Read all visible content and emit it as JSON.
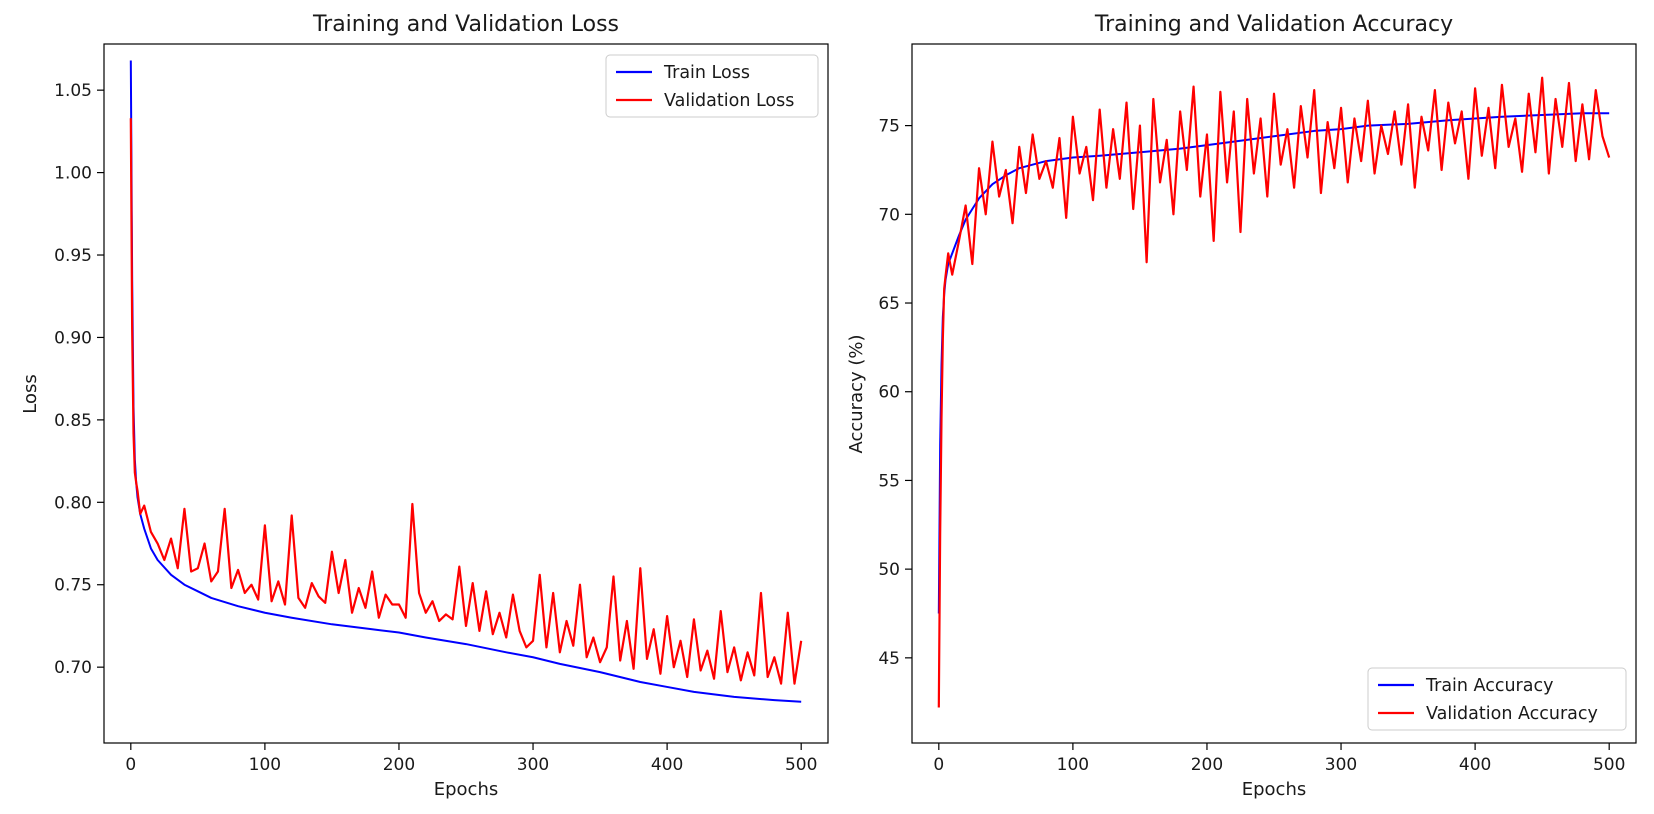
{
  "chart_data": [
    {
      "type": "line",
      "title": "Training and Validation Loss",
      "xlabel": "Epochs",
      "ylabel": "Loss",
      "xlim": [
        -20,
        520
      ],
      "ylim": [
        0.654,
        1.078
      ],
      "xticks": [
        0,
        100,
        200,
        300,
        400,
        500
      ],
      "yticks": [
        0.7,
        0.75,
        0.8,
        0.85,
        0.9,
        0.95,
        1.0,
        1.05
      ],
      "xtick_labels": [
        "0",
        "100",
        "200",
        "300",
        "400",
        "500"
      ],
      "ytick_labels": [
        "0.70",
        "0.75",
        "0.80",
        "0.85",
        "0.90",
        "0.95",
        "1.00",
        "1.05"
      ],
      "grid": false,
      "legend": "upper-right",
      "series": [
        {
          "name": "Train Loss",
          "color": "#0000ff",
          "x": [
            0,
            1,
            2,
            3,
            4,
            5,
            7,
            10,
            15,
            20,
            30,
            40,
            50,
            60,
            80,
            100,
            120,
            150,
            180,
            200,
            220,
            250,
            280,
            300,
            320,
            350,
            380,
            400,
            420,
            450,
            480,
            500
          ],
          "y": [
            1.068,
            0.935,
            0.858,
            0.826,
            0.812,
            0.803,
            0.793,
            0.784,
            0.772,
            0.765,
            0.756,
            0.75,
            0.746,
            0.742,
            0.737,
            0.733,
            0.73,
            0.726,
            0.723,
            0.721,
            0.718,
            0.714,
            0.709,
            0.706,
            0.702,
            0.697,
            0.691,
            0.688,
            0.685,
            0.682,
            0.68,
            0.679
          ]
        },
        {
          "name": "Validation Loss",
          "color": "#ff0000",
          "x": [
            0,
            1,
            2,
            3,
            4,
            5,
            7,
            10,
            15,
            20,
            25,
            30,
            35,
            40,
            45,
            50,
            55,
            60,
            65,
            70,
            75,
            80,
            85,
            90,
            95,
            100,
            105,
            110,
            115,
            120,
            125,
            130,
            135,
            140,
            145,
            150,
            155,
            160,
            165,
            170,
            175,
            180,
            185,
            190,
            195,
            200,
            205,
            210,
            215,
            220,
            225,
            230,
            235,
            240,
            245,
            250,
            255,
            260,
            265,
            270,
            275,
            280,
            285,
            290,
            295,
            300,
            305,
            310,
            315,
            320,
            325,
            330,
            335,
            340,
            345,
            350,
            355,
            360,
            365,
            370,
            375,
            380,
            385,
            390,
            395,
            400,
            405,
            410,
            415,
            420,
            425,
            430,
            435,
            440,
            445,
            450,
            455,
            460,
            465,
            470,
            475,
            480,
            485,
            490,
            495,
            500
          ],
          "y": [
            1.033,
            0.905,
            0.842,
            0.818,
            0.812,
            0.807,
            0.793,
            0.798,
            0.782,
            0.775,
            0.765,
            0.778,
            0.76,
            0.796,
            0.758,
            0.76,
            0.775,
            0.752,
            0.758,
            0.796,
            0.748,
            0.759,
            0.745,
            0.75,
            0.741,
            0.786,
            0.74,
            0.752,
            0.738,
            0.792,
            0.742,
            0.736,
            0.751,
            0.743,
            0.739,
            0.77,
            0.745,
            0.765,
            0.733,
            0.748,
            0.736,
            0.758,
            0.73,
            0.744,
            0.738,
            0.738,
            0.73,
            0.799,
            0.745,
            0.733,
            0.74,
            0.728,
            0.732,
            0.729,
            0.761,
            0.725,
            0.751,
            0.722,
            0.746,
            0.72,
            0.733,
            0.718,
            0.744,
            0.722,
            0.712,
            0.716,
            0.756,
            0.712,
            0.745,
            0.709,
            0.728,
            0.713,
            0.75,
            0.706,
            0.718,
            0.703,
            0.712,
            0.755,
            0.704,
            0.728,
            0.699,
            0.76,
            0.705,
            0.723,
            0.696,
            0.731,
            0.7,
            0.716,
            0.694,
            0.729,
            0.698,
            0.71,
            0.693,
            0.734,
            0.697,
            0.712,
            0.692,
            0.709,
            0.695,
            0.745,
            0.694,
            0.706,
            0.69,
            0.733,
            0.69,
            0.716
          ]
        }
      ]
    },
    {
      "type": "line",
      "title": "Training and Validation Accuracy",
      "xlabel": "Epochs",
      "ylabel": "Accuracy (%)",
      "xlim": [
        -20,
        520
      ],
      "ylim": [
        40.2,
        79.6
      ],
      "xticks": [
        0,
        100,
        200,
        300,
        400,
        500
      ],
      "yticks": [
        45,
        50,
        55,
        60,
        65,
        70,
        75
      ],
      "xtick_labels": [
        "0",
        "100",
        "200",
        "300",
        "400",
        "500"
      ],
      "ytick_labels": [
        "45",
        "50",
        "55",
        "60",
        "65",
        "70",
        "75"
      ],
      "grid": false,
      "legend": "lower-right",
      "series": [
        {
          "name": "Train Accuracy",
          "color": "#0000ff",
          "x": [
            0,
            1,
            2,
            3,
            4,
            5,
            7,
            10,
            15,
            20,
            30,
            40,
            50,
            60,
            80,
            100,
            120,
            150,
            180,
            200,
            220,
            250,
            280,
            300,
            320,
            350,
            380,
            400,
            420,
            450,
            480,
            500
          ],
          "y": [
            47.5,
            57.0,
            61.5,
            64.2,
            65.5,
            66.3,
            67.2,
            67.8,
            68.8,
            69.7,
            70.9,
            71.7,
            72.2,
            72.6,
            73.0,
            73.2,
            73.3,
            73.5,
            73.7,
            73.9,
            74.1,
            74.4,
            74.7,
            74.8,
            75.0,
            75.1,
            75.3,
            75.4,
            75.5,
            75.6,
            75.7,
            75.7
          ]
        },
        {
          "name": "Validation Accuracy",
          "color": "#ff0000",
          "x": [
            0,
            1,
            2,
            3,
            4,
            5,
            7,
            10,
            15,
            20,
            25,
            30,
            35,
            40,
            45,
            50,
            55,
            60,
            65,
            70,
            75,
            80,
            85,
            90,
            95,
            100,
            105,
            110,
            115,
            120,
            125,
            130,
            135,
            140,
            145,
            150,
            155,
            160,
            165,
            170,
            175,
            180,
            185,
            190,
            195,
            200,
            205,
            210,
            215,
            220,
            225,
            230,
            235,
            240,
            245,
            250,
            255,
            260,
            265,
            270,
            275,
            280,
            285,
            290,
            295,
            300,
            305,
            310,
            315,
            320,
            325,
            330,
            335,
            340,
            345,
            350,
            355,
            360,
            365,
            370,
            375,
            380,
            385,
            390,
            395,
            400,
            405,
            410,
            415,
            420,
            425,
            430,
            435,
            440,
            445,
            450,
            455,
            460,
            465,
            470,
            475,
            480,
            485,
            490,
            495,
            500
          ],
          "y": [
            42.2,
            52.0,
            58.5,
            63.0,
            65.8,
            66.5,
            67.8,
            66.6,
            68.5,
            70.5,
            67.2,
            72.6,
            70.0,
            74.1,
            71.0,
            72.5,
            69.5,
            73.8,
            71.2,
            74.5,
            72.0,
            73.0,
            71.5,
            74.3,
            69.8,
            75.5,
            72.3,
            73.8,
            70.8,
            75.9,
            71.5,
            74.8,
            72.0,
            76.3,
            70.3,
            75.0,
            67.3,
            76.5,
            71.8,
            74.2,
            70.0,
            75.8,
            72.5,
            77.2,
            71.0,
            74.5,
            68.5,
            76.9,
            71.8,
            75.8,
            69.0,
            76.5,
            72.3,
            75.4,
            71.0,
            76.8,
            72.8,
            74.8,
            71.5,
            76.1,
            73.2,
            77.0,
            71.2,
            75.2,
            72.6,
            76.0,
            71.8,
            75.4,
            73.0,
            76.4,
            72.3,
            75.0,
            73.4,
            75.8,
            72.8,
            76.2,
            71.5,
            75.5,
            73.6,
            77.0,
            72.5,
            76.3,
            74.0,
            75.8,
            72.0,
            77.1,
            73.3,
            76.0,
            72.6,
            77.3,
            73.8,
            75.4,
            72.4,
            76.8,
            73.5,
            77.7,
            72.3,
            76.5,
            73.8,
            77.4,
            73.0,
            76.2,
            73.1,
            77.0,
            74.4,
            73.2
          ]
        }
      ]
    }
  ]
}
